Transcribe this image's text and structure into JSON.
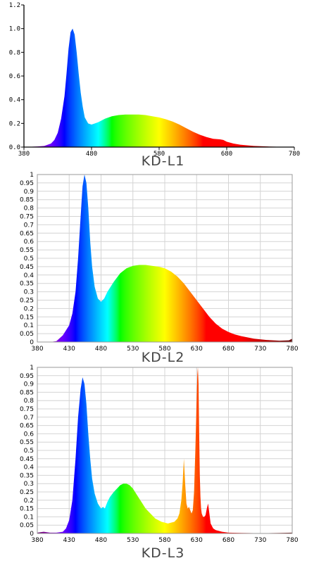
{
  "chart_data": [
    {
      "type": "area",
      "title": "KD-L1",
      "xlim": [
        380,
        780
      ],
      "ylim": [
        0,
        1.2
      ],
      "x_ticks": [
        380,
        480,
        580,
        680,
        780
      ],
      "x_tick_labels": [
        "380",
        "480",
        "580",
        "680",
        "780"
      ],
      "y_ticks": [
        0,
        0.2,
        0.4,
        0.6,
        0.8,
        1.0,
        1.2
      ],
      "y_tick_labels": [
        "0.0",
        "0.2",
        "0.4",
        "0.6",
        "0.8",
        "1.0",
        "1.2"
      ],
      "grid": false,
      "x": [
        380,
        400,
        410,
        420,
        425,
        430,
        435,
        440,
        443,
        446,
        449,
        452,
        455,
        458,
        461,
        464,
        467,
        470,
        475,
        480,
        485,
        490,
        500,
        510,
        520,
        530,
        540,
        550,
        560,
        570,
        580,
        590,
        600,
        610,
        620,
        630,
        640,
        650,
        660,
        670,
        675,
        680,
        690,
        700,
        720,
        740,
        760,
        780
      ],
      "y": [
        0,
        0.005,
        0.01,
        0.03,
        0.06,
        0.12,
        0.24,
        0.43,
        0.62,
        0.83,
        0.97,
        1.0,
        0.95,
        0.8,
        0.62,
        0.46,
        0.34,
        0.25,
        0.2,
        0.19,
        0.2,
        0.21,
        0.24,
        0.26,
        0.27,
        0.275,
        0.275,
        0.275,
        0.27,
        0.26,
        0.25,
        0.235,
        0.215,
        0.19,
        0.16,
        0.13,
        0.105,
        0.085,
        0.07,
        0.065,
        0.06,
        0.045,
        0.03,
        0.02,
        0.01,
        0.005,
        0.002,
        0
      ]
    },
    {
      "type": "area",
      "title": "KD-L2",
      "xlim": [
        380,
        780
      ],
      "ylim": [
        0,
        1
      ],
      "x_ticks": [
        380,
        430,
        480,
        530,
        580,
        630,
        680,
        730,
        780
      ],
      "x_tick_labels": [
        "380",
        "430",
        "480",
        "530",
        "580",
        "630",
        "680",
        "730",
        "780"
      ],
      "y_ticks": [
        0,
        0.05,
        0.1,
        0.15,
        0.2,
        0.25,
        0.3,
        0.35,
        0.4,
        0.45,
        0.5,
        0.55,
        0.6,
        0.65,
        0.7,
        0.75,
        0.8,
        0.85,
        0.9,
        0.95,
        1
      ],
      "y_tick_labels": [
        "0",
        "0.05",
        "0.1",
        "0.15",
        "0.2",
        "0.25",
        "0.3",
        "0.35",
        "0.4",
        "0.45",
        "0.5",
        "0.55",
        "0.6",
        "0.65",
        "0.7",
        "0.75",
        "0.8",
        "0.85",
        "0.9",
        "0.95",
        "1"
      ],
      "grid": true,
      "x": [
        380,
        400,
        410,
        420,
        430,
        435,
        440,
        444,
        448,
        451,
        454,
        457,
        460,
        463,
        466,
        470,
        475,
        480,
        485,
        490,
        500,
        510,
        520,
        530,
        540,
        550,
        560,
        570,
        580,
        590,
        600,
        610,
        620,
        630,
        640,
        650,
        660,
        670,
        680,
        690,
        700,
        720,
        740,
        760,
        775,
        780
      ],
      "y": [
        0,
        0,
        0.005,
        0.04,
        0.1,
        0.17,
        0.3,
        0.5,
        0.75,
        0.93,
        1.0,
        0.95,
        0.8,
        0.6,
        0.45,
        0.33,
        0.26,
        0.24,
        0.26,
        0.3,
        0.36,
        0.41,
        0.44,
        0.455,
        0.46,
        0.46,
        0.455,
        0.45,
        0.44,
        0.42,
        0.39,
        0.35,
        0.3,
        0.25,
        0.2,
        0.15,
        0.11,
        0.08,
        0.06,
        0.045,
        0.035,
        0.02,
        0.012,
        0.008,
        0.01,
        0.02
      ]
    },
    {
      "type": "area",
      "title": "KD-L3",
      "xlim": [
        380,
        780
      ],
      "ylim": [
        0,
        1
      ],
      "x_ticks": [
        380,
        430,
        480,
        530,
        580,
        630,
        680,
        730,
        780
      ],
      "x_tick_labels": [
        "380",
        "430",
        "480",
        "530",
        "580",
        "630",
        "680",
        "730",
        "780"
      ],
      "y_ticks": [
        0,
        0.05,
        0.1,
        0.15,
        0.2,
        0.25,
        0.3,
        0.35,
        0.4,
        0.45,
        0.5,
        0.55,
        0.6,
        0.65,
        0.7,
        0.75,
        0.8,
        0.85,
        0.9,
        0.95,
        1
      ],
      "y_tick_labels": [
        "0",
        "0.05",
        "0.1",
        "0.15",
        "0.2",
        "0.25",
        "0.3",
        "0.35",
        "0.4",
        "0.45",
        "0.5",
        "0.55",
        "0.6",
        "0.65",
        "0.7",
        "0.75",
        "0.8",
        "0.85",
        "0.9",
        "0.95",
        "1"
      ],
      "grid": true,
      "x": [
        380,
        390,
        400,
        410,
        420,
        425,
        430,
        435,
        440,
        444,
        448,
        451,
        454,
        457,
        460,
        463,
        466,
        470,
        475,
        480,
        483,
        486,
        490,
        494,
        500,
        505,
        510,
        515,
        520,
        525,
        530,
        535,
        540,
        545,
        550,
        555,
        560,
        565,
        570,
        575,
        580,
        585,
        590,
        595,
        600,
        603,
        606,
        608,
        610,
        612,
        614,
        616,
        618,
        620,
        622,
        624,
        626,
        628,
        630,
        631,
        632,
        633,
        634,
        635,
        636,
        637,
        638,
        640,
        642,
        644,
        646,
        648,
        650,
        652,
        656,
        660,
        670,
        680,
        700,
        720,
        740,
        760,
        780
      ],
      "y": [
        0.005,
        0.01,
        0.005,
        0.005,
        0.01,
        0.03,
        0.08,
        0.2,
        0.45,
        0.7,
        0.87,
        0.94,
        0.9,
        0.78,
        0.6,
        0.45,
        0.33,
        0.24,
        0.18,
        0.15,
        0.16,
        0.15,
        0.19,
        0.22,
        0.25,
        0.27,
        0.29,
        0.3,
        0.3,
        0.29,
        0.27,
        0.24,
        0.21,
        0.18,
        0.15,
        0.13,
        0.11,
        0.09,
        0.08,
        0.07,
        0.065,
        0.06,
        0.065,
        0.07,
        0.09,
        0.12,
        0.2,
        0.3,
        0.45,
        0.3,
        0.18,
        0.15,
        0.16,
        0.14,
        0.12,
        0.14,
        0.25,
        0.5,
        0.8,
        0.95,
        1.0,
        0.9,
        0.6,
        0.35,
        0.22,
        0.15,
        0.12,
        0.1,
        0.1,
        0.11,
        0.15,
        0.18,
        0.12,
        0.06,
        0.03,
        0.02,
        0.01,
        0.005,
        0.003,
        0.002,
        0.002,
        0.003,
        0.005
      ]
    }
  ]
}
